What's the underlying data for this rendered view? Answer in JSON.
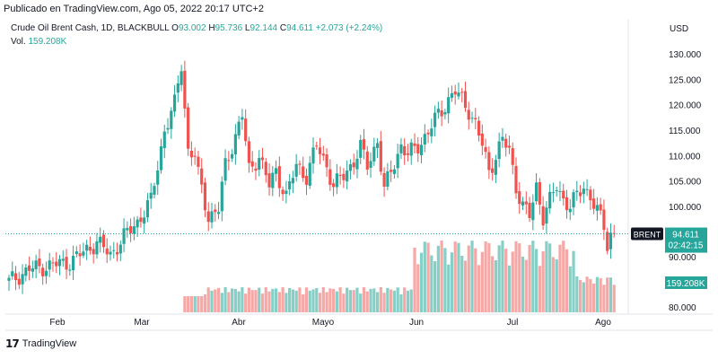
{
  "header": {
    "published": "Publicado en TradingView.com, Ago 05, 2022 20:17 UTC+2"
  },
  "legend": {
    "symbol": "Crude Oil Brent Cash, 1D, BLACKBULL",
    "open_label": "O",
    "open": "93.002",
    "high_label": "H",
    "high": "95.736",
    "low_label": "L",
    "low": "92.144",
    "close_label": "C",
    "close": "94.611",
    "change": "+2.073 (+2.24%)",
    "volume_label": "Vol.",
    "volume": "159.208K"
  },
  "price_axis": {
    "currency": "USD",
    "ticks": [
      "130.000",
      "125.000",
      "120.000",
      "115.000",
      "110.000",
      "105.000",
      "100.000",
      "90.000",
      "80.000"
    ]
  },
  "badges": {
    "symbol_tag": "BRENT",
    "price": "94.611",
    "countdown": "02:42:15",
    "volume": "159.208K"
  },
  "footer": {
    "brand": "TradingView"
  },
  "colors": {
    "up": "#26a69a",
    "down": "#ef5350",
    "up_vol": "#86cfc6",
    "down_vol": "#f5a8a6",
    "badge_dark": "#131722"
  },
  "chart_data": {
    "type": "candlestick",
    "title": "Crude Oil Brent Cash, 1D, BLACKBULL",
    "x_labels": [
      "Feb",
      "Mar",
      "Abr",
      "Mayo",
      "Jun",
      "Jul",
      "Ago"
    ],
    "y_range": [
      80,
      132
    ],
    "last_price": 94.611,
    "close_path": [
      {
        "i": 0,
        "c": 85.0
      },
      {
        "i": 6,
        "c": 87.5
      },
      {
        "i": 12,
        "c": 88.2
      },
      {
        "i": 18,
        "c": 89.0
      },
      {
        "i": 22,
        "c": 91.0
      },
      {
        "i": 26,
        "c": 93.0
      },
      {
        "i": 30,
        "c": 90.5
      },
      {
        "i": 34,
        "c": 94.0
      },
      {
        "i": 38,
        "c": 97.0
      },
      {
        "i": 42,
        "c": 101.0
      },
      {
        "i": 44,
        "c": 108.0
      },
      {
        "i": 46,
        "c": 115.0
      },
      {
        "i": 49,
        "c": 120.0
      },
      {
        "i": 51,
        "c": 128.0
      },
      {
        "i": 53,
        "c": 111.0
      },
      {
        "i": 55,
        "c": 110.0
      },
      {
        "i": 56,
        "c": 106.0
      },
      {
        "i": 59,
        "c": 98.0
      },
      {
        "i": 62,
        "c": 99.5
      },
      {
        "i": 64,
        "c": 108.0
      },
      {
        "i": 67,
        "c": 114.0
      },
      {
        "i": 69,
        "c": 118.0
      },
      {
        "i": 71,
        "c": 107.0
      },
      {
        "i": 74,
        "c": 110.0
      },
      {
        "i": 77,
        "c": 104.0
      },
      {
        "i": 79,
        "c": 107.0
      },
      {
        "i": 82,
        "c": 102.0
      },
      {
        "i": 85,
        "c": 108.0
      },
      {
        "i": 88,
        "c": 106.0
      },
      {
        "i": 91,
        "c": 112.0
      },
      {
        "i": 94,
        "c": 108.0
      },
      {
        "i": 96,
        "c": 104.0
      },
      {
        "i": 99,
        "c": 106.0
      },
      {
        "i": 102,
        "c": 109.0
      },
      {
        "i": 104,
        "c": 111.5
      },
      {
        "i": 106,
        "c": 108.0
      },
      {
        "i": 109,
        "c": 113.0
      },
      {
        "i": 111,
        "c": 103.0
      },
      {
        "i": 113,
        "c": 107.0
      },
      {
        "i": 116,
        "c": 112.0
      },
      {
        "i": 118,
        "c": 110.0
      },
      {
        "i": 121,
        "c": 112.0
      },
      {
        "i": 124,
        "c": 114.5
      },
      {
        "i": 126,
        "c": 117.0
      },
      {
        "i": 128,
        "c": 119.0
      },
      {
        "i": 130,
        "c": 121.0
      },
      {
        "i": 132,
        "c": 122.5
      },
      {
        "i": 134,
        "c": 121.0
      },
      {
        "i": 136,
        "c": 119.0
      },
      {
        "i": 138,
        "c": 116.0
      },
      {
        "i": 140,
        "c": 112.0
      },
      {
        "i": 142,
        "c": 107.0
      },
      {
        "i": 144,
        "c": 110.0
      },
      {
        "i": 146,
        "c": 113.0
      },
      {
        "i": 148,
        "c": 111.0
      },
      {
        "i": 150,
        "c": 104.0
      },
      {
        "i": 152,
        "c": 100.0
      },
      {
        "i": 154,
        "c": 98.0
      },
      {
        "i": 156,
        "c": 104.0
      },
      {
        "i": 158,
        "c": 98.0
      },
      {
        "i": 160,
        "c": 101.0
      },
      {
        "i": 162,
        "c": 104.0
      },
      {
        "i": 164,
        "c": 101.5
      },
      {
        "i": 166,
        "c": 100.0
      },
      {
        "i": 168,
        "c": 102.0
      },
      {
        "i": 170,
        "c": 104.0
      },
      {
        "i": 172,
        "c": 102.0
      },
      {
        "i": 174,
        "c": 99.0
      },
      {
        "i": 176,
        "c": 96.0
      },
      {
        "i": 177,
        "c": 92.5
      },
      {
        "i": 178,
        "c": 94.611
      }
    ],
    "volume_pattern": "volume bars begin around late March; low through mid May; higher (near 0.85-1.0 of max) from June through July; last bar 159.208K"
  }
}
